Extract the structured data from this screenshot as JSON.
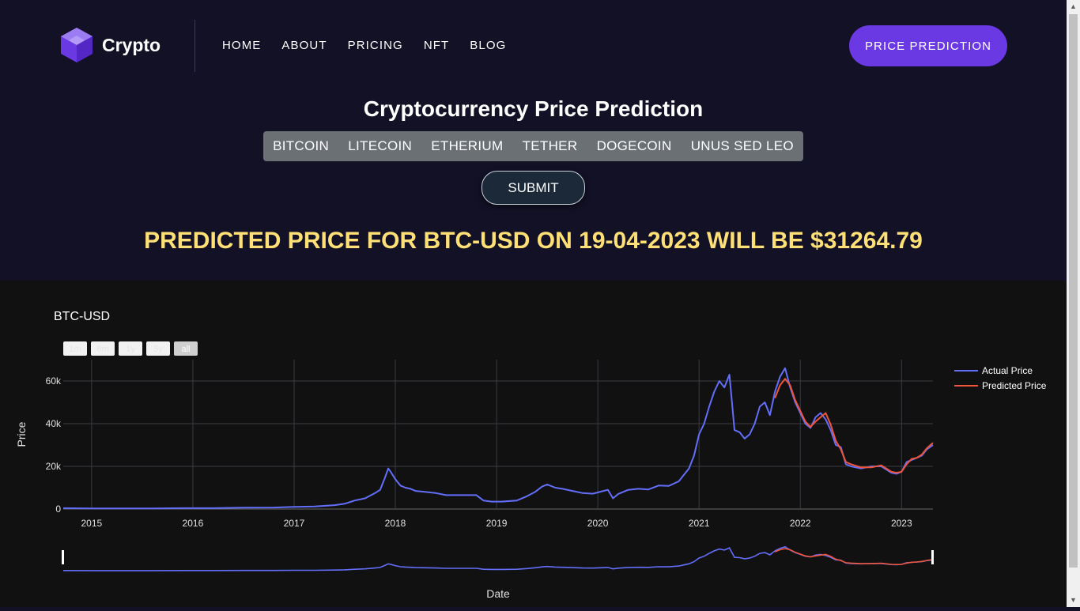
{
  "brand": {
    "name": "Crypto"
  },
  "nav": {
    "items": [
      "HOME",
      "ABOUT",
      "PRICING",
      "NFT",
      "BLOG"
    ]
  },
  "cta_label": "PRICE PREDICTION",
  "page_title": "Cryptocurrency Price Prediction",
  "coins": [
    "BITCOIN",
    "LITECOIN",
    "ETHERIUM",
    "TETHER",
    "DOGECOIN",
    "UNUS SED LEO"
  ],
  "submit_label": "SUBMIT",
  "result_text": "PREDICTED PRICE FOR BTC-USD ON 19-04-2023 WILL BE $31264.79",
  "colors": {
    "accent": "#6a39e3",
    "actual": "#636efa",
    "predicted": "#ef553b",
    "result": "#ffe076"
  },
  "range_buttons": [
    "1m",
    "6m",
    "1y",
    "5y",
    "all"
  ],
  "chart_data": {
    "type": "line",
    "title": "BTC-USD",
    "xlabel": "Date",
    "ylabel": "Price",
    "xlim": [
      2014.72,
      2023.31
    ],
    "ylim": [
      0,
      70000
    ],
    "x_ticks": [
      "2015",
      "2016",
      "2017",
      "2018",
      "2019",
      "2020",
      "2021",
      "2022",
      "2023"
    ],
    "y_ticks": [
      "0",
      "20k",
      "40k",
      "60k"
    ],
    "legend_position": "top-right",
    "series": [
      {
        "name": "Actual Price",
        "x": [
          2014.72,
          2015.0,
          2015.3,
          2015.6,
          2015.9,
          2016.2,
          2016.5,
          2016.8,
          2017.0,
          2017.2,
          2017.4,
          2017.5,
          2017.6,
          2017.7,
          2017.8,
          2017.85,
          2017.9,
          2017.93,
          2017.96,
          2018.0,
          2018.05,
          2018.1,
          2018.15,
          2018.2,
          2018.3,
          2018.4,
          2018.5,
          2018.6,
          2018.7,
          2018.8,
          2018.87,
          2018.95,
          2019.05,
          2019.2,
          2019.3,
          2019.38,
          2019.45,
          2019.5,
          2019.58,
          2019.65,
          2019.75,
          2019.85,
          2019.95,
          2020.1,
          2020.15,
          2020.2,
          2020.3,
          2020.4,
          2020.5,
          2020.6,
          2020.7,
          2020.8,
          2020.85,
          2020.9,
          2020.95,
          2021.0,
          2021.05,
          2021.1,
          2021.15,
          2021.2,
          2021.25,
          2021.3,
          2021.35,
          2021.4,
          2021.45,
          2021.5,
          2021.55,
          2021.6,
          2021.65,
          2021.7,
          2021.75,
          2021.8,
          2021.85,
          2021.9,
          2021.95,
          2022.0,
          2022.05,
          2022.1,
          2022.15,
          2022.2,
          2022.25,
          2022.3,
          2022.35,
          2022.4,
          2022.45,
          2022.5,
          2022.6,
          2022.7,
          2022.8,
          2022.9,
          2022.95,
          2023.0,
          2023.05,
          2023.1,
          2023.15,
          2023.2,
          2023.25,
          2023.31
        ],
        "y": [
          400,
          250,
          250,
          300,
          400,
          400,
          650,
          700,
          1000,
          1200,
          1800,
          2500,
          4000,
          5000,
          7500,
          9000,
          15000,
          19000,
          17000,
          14000,
          11000,
          10000,
          9500,
          8500,
          8000,
          7500,
          6500,
          6500,
          6500,
          6500,
          4000,
          3500,
          3500,
          4000,
          6000,
          8000,
          10500,
          11500,
          10000,
          9500,
          8500,
          7500,
          7200,
          9000,
          5000,
          7000,
          9000,
          9500,
          9200,
          11000,
          10800,
          13000,
          16000,
          19000,
          25000,
          35000,
          40000,
          48000,
          55000,
          60000,
          57000,
          63000,
          37000,
          36000,
          33000,
          35000,
          40000,
          48000,
          50000,
          44000,
          55000,
          62000,
          66000,
          57000,
          50000,
          45000,
          40000,
          38000,
          43000,
          45000,
          42000,
          37000,
          30000,
          29000,
          21000,
          20000,
          19000,
          20000,
          20000,
          17000,
          16500,
          17500,
          22000,
          23000,
          24000,
          25000,
          28000,
          30000
        ]
      },
      {
        "name": "Predicted Price",
        "x": [
          2021.75,
          2021.8,
          2021.85,
          2021.9,
          2021.95,
          2022.0,
          2022.05,
          2022.1,
          2022.15,
          2022.2,
          2022.25,
          2022.3,
          2022.35,
          2022.4,
          2022.45,
          2022.5,
          2022.6,
          2022.7,
          2022.8,
          2022.9,
          2022.95,
          2023.0,
          2023.05,
          2023.1,
          2023.15,
          2023.2,
          2023.25,
          2023.31
        ],
        "y": [
          52000,
          58000,
          61000,
          58000,
          51000,
          46000,
          41000,
          38500,
          41000,
          43000,
          45000,
          39500,
          32000,
          28000,
          22000,
          21000,
          19500,
          19500,
          20500,
          17500,
          17000,
          17500,
          21000,
          23500,
          24000,
          25500,
          28500,
          31000
        ]
      }
    ]
  }
}
